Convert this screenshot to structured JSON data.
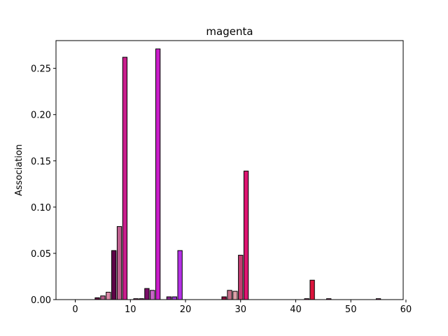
{
  "chart_data": {
    "type": "bar",
    "title": "magenta",
    "xlabel": "",
    "ylabel": "Association",
    "xlim": [
      -3.5,
      59.5
    ],
    "ylim": [
      0,
      0.28
    ],
    "xticks": [
      0,
      10,
      20,
      30,
      40,
      50,
      60
    ],
    "yticks": [
      0.0,
      0.05,
      0.1,
      0.15,
      0.2,
      0.25
    ],
    "ytick_labels": [
      "0.00",
      "0.05",
      "0.10",
      "0.15",
      "0.20",
      "0.25"
    ],
    "grid": false,
    "x": [
      0,
      1,
      2,
      3,
      4,
      5,
      6,
      7,
      8,
      9,
      10,
      11,
      12,
      13,
      14,
      15,
      16,
      17,
      18,
      19,
      20,
      21,
      22,
      23,
      24,
      25,
      26,
      27,
      28,
      29,
      30,
      31,
      32,
      33,
      34,
      35,
      36,
      37,
      38,
      39,
      40,
      41,
      42,
      43,
      44,
      45,
      46,
      47,
      48,
      49,
      50,
      51,
      52,
      53,
      54,
      55,
      56,
      57
    ],
    "values": [
      0,
      0,
      0,
      0,
      0.002,
      0.004,
      0.008,
      0.053,
      0.079,
      0.262,
      0,
      0.001,
      0.001,
      0.012,
      0.01,
      0.271,
      0,
      0.003,
      0.003,
      0.053,
      0,
      0,
      0,
      0,
      0,
      0,
      0,
      0.003,
      0.01,
      0.009,
      0.048,
      0.139,
      0,
      0,
      0,
      0,
      0,
      0,
      0,
      0,
      0,
      0,
      0.001,
      0.021,
      0,
      0,
      0.001,
      0,
      0,
      0,
      0,
      0,
      0,
      0,
      0,
      0.001,
      0,
      0
    ],
    "colors": [
      "#c0408a",
      "#c0408a",
      "#c0408a",
      "#c0408a",
      "#6b0f48",
      "#b85e8c",
      "#dc8aa8",
      "#5e0448",
      "#c06090",
      "#c81e8c",
      "#c0408a",
      "#c0408a",
      "#c0408a",
      "#7a0e68",
      "#c864c8",
      "#c81ec8",
      "#c0408a",
      "#8a2890",
      "#9a3ad4",
      "#b430e6",
      "#c0408a",
      "#c0408a",
      "#c0408a",
      "#c0408a",
      "#c0408a",
      "#c0408a",
      "#c0408a",
      "#8e1240",
      "#c8708a",
      "#dca0a8",
      "#c43c70",
      "#dc1470",
      "#c0408a",
      "#c0408a",
      "#c0408a",
      "#c0408a",
      "#c0408a",
      "#c0408a",
      "#c0408a",
      "#c0408a",
      "#c0408a",
      "#c0408a",
      "#c0408a",
      "#dc143c",
      "#c0408a",
      "#c0408a",
      "#c0408a",
      "#c0408a",
      "#c0408a",
      "#c0408a",
      "#c0408a",
      "#c0408a",
      "#c0408a",
      "#c0408a",
      "#c0408a",
      "#c0408a",
      "#c0408a",
      "#c0408a"
    ]
  }
}
